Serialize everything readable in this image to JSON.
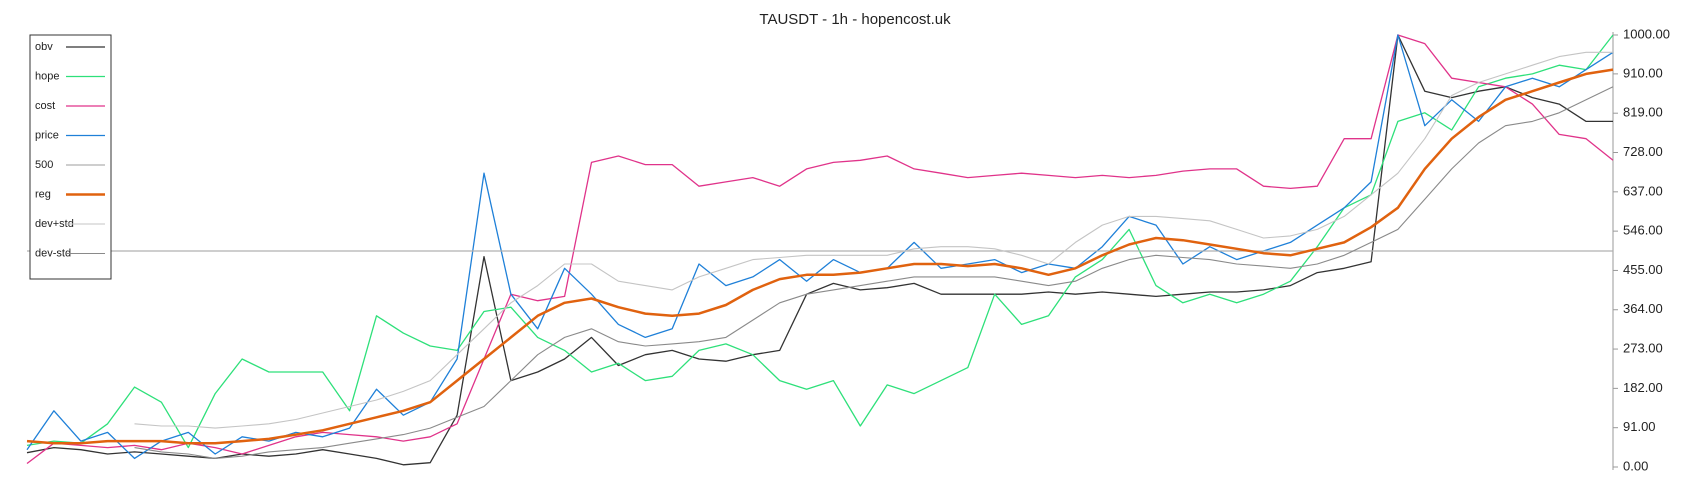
{
  "chart_data": {
    "type": "line",
    "title": "TAUSDT - 1h - hopencost.uk",
    "ylim": [
      0,
      1000
    ],
    "yticks": [
      {
        "value": 0,
        "label": "0.00"
      },
      {
        "value": 91,
        "label": "91.00"
      },
      {
        "value": 182,
        "label": "182.00"
      },
      {
        "value": 273,
        "label": "273.00"
      },
      {
        "value": 364,
        "label": "364.00"
      },
      {
        "value": 455,
        "label": "455.00"
      },
      {
        "value": 546,
        "label": "546.00"
      },
      {
        "value": 637,
        "label": "637.00"
      },
      {
        "value": 728,
        "label": "728.00"
      },
      {
        "value": 819,
        "label": "819.00"
      },
      {
        "value": 910,
        "label": "910.00"
      },
      {
        "value": 1000,
        "label": "1000.00"
      }
    ],
    "legend": "top-left",
    "series": [
      {
        "name": "obv",
        "color": "#333333",
        "width": 1.3,
        "values": [
          33,
          45,
          40,
          30,
          35,
          30,
          25,
          20,
          30,
          25,
          30,
          40,
          30,
          20,
          5,
          10,
          120,
          487,
          200,
          220,
          250,
          300,
          235,
          260,
          270,
          250,
          245,
          260,
          270,
          400,
          425,
          410,
          415,
          425,
          400,
          400,
          400,
          400,
          405,
          400,
          405,
          400,
          395,
          400,
          405,
          405,
          410,
          420,
          450,
          460,
          475,
          1000,
          870,
          855,
          870,
          880,
          855,
          840,
          800,
          800
        ]
      },
      {
        "name": "hope",
        "color": "#2ee07a",
        "width": 1.3,
        "values": [
          50,
          60,
          55,
          100,
          185,
          150,
          45,
          170,
          250,
          220,
          220,
          220,
          130,
          350,
          310,
          280,
          270,
          360,
          370,
          300,
          270,
          220,
          240,
          200,
          210,
          270,
          285,
          260,
          200,
          180,
          200,
          95,
          190,
          170,
          200,
          230,
          400,
          330,
          350,
          440,
          480,
          550,
          420,
          380,
          400,
          380,
          400,
          430,
          510,
          600,
          630,
          800,
          820,
          780,
          880,
          900,
          910,
          930,
          920,
          1000
        ]
      },
      {
        "name": "cost",
        "color": "#e0338a",
        "width": 1.3,
        "values": [
          8,
          55,
          50,
          45,
          50,
          40,
          55,
          45,
          30,
          50,
          70,
          80,
          75,
          70,
          60,
          70,
          100,
          250,
          400,
          385,
          395,
          705,
          720,
          700,
          700,
          650,
          660,
          670,
          650,
          690,
          705,
          710,
          720,
          690,
          680,
          670,
          675,
          680,
          675,
          670,
          675,
          670,
          675,
          685,
          690,
          690,
          650,
          645,
          650,
          760,
          760,
          1000,
          980,
          900,
          890,
          880,
          840,
          770,
          760,
          710
        ]
      },
      {
        "name": "price",
        "color": "#1f80d8",
        "width": 1.3,
        "values": [
          40,
          130,
          60,
          80,
          20,
          60,
          80,
          30,
          70,
          60,
          80,
          70,
          90,
          180,
          120,
          150,
          250,
          680,
          400,
          320,
          460,
          400,
          330,
          300,
          320,
          470,
          420,
          440,
          480,
          430,
          480,
          450,
          460,
          520,
          460,
          470,
          480,
          450,
          470,
          460,
          510,
          580,
          560,
          470,
          510,
          480,
          500,
          520,
          560,
          600,
          660,
          1000,
          790,
          850,
          800,
          880,
          900,
          880,
          920,
          960
        ]
      },
      {
        "name": "500",
        "color": "#b0b0b0",
        "width": 1.3,
        "values": [
          500,
          500,
          500,
          500,
          500,
          500,
          500,
          500,
          500,
          500,
          500,
          500,
          500,
          500,
          500,
          500,
          500,
          500,
          500,
          500,
          500,
          500,
          500,
          500,
          500,
          500,
          500,
          500,
          500,
          500,
          500,
          500,
          500,
          500,
          500,
          500,
          500,
          500,
          500,
          500,
          500,
          500,
          500,
          500,
          500,
          500,
          500,
          500,
          500,
          500,
          500,
          500,
          500,
          500,
          500,
          500,
          500,
          500,
          500,
          500
        ]
      },
      {
        "name": "reg",
        "color": "#e0620f",
        "width": 2.5,
        "values": [
          60,
          55,
          55,
          60,
          60,
          60,
          55,
          55,
          60,
          65,
          75,
          85,
          100,
          115,
          130,
          150,
          200,
          250,
          300,
          350,
          380,
          390,
          370,
          355,
          350,
          355,
          375,
          410,
          435,
          445,
          445,
          450,
          460,
          470,
          470,
          465,
          470,
          460,
          445,
          460,
          490,
          515,
          530,
          525,
          515,
          505,
          495,
          490,
          505,
          520,
          555,
          600,
          690,
          760,
          810,
          850,
          870,
          890,
          910,
          920
        ]
      },
      {
        "name": "dev+std",
        "color": "#c4c4c4",
        "width": 1.1,
        "values": [
          null,
          null,
          null,
          null,
          100,
          95,
          95,
          90,
          95,
          100,
          110,
          125,
          140,
          155,
          175,
          200,
          260,
          320,
          380,
          420,
          470,
          470,
          430,
          420,
          410,
          440,
          460,
          480,
          485,
          490,
          490,
          490,
          490,
          505,
          510,
          510,
          505,
          490,
          470,
          520,
          560,
          580,
          580,
          575,
          570,
          550,
          530,
          535,
          550,
          580,
          630,
          680,
          760,
          860,
          890,
          910,
          930,
          950,
          960,
          960
        ]
      },
      {
        "name": "dev-std",
        "color": "#8a8a8a",
        "width": 1.1,
        "values": [
          null,
          null,
          null,
          null,
          45,
          35,
          30,
          20,
          25,
          35,
          40,
          45,
          55,
          65,
          75,
          90,
          115,
          140,
          200,
          260,
          300,
          320,
          290,
          280,
          285,
          290,
          300,
          340,
          380,
          400,
          410,
          420,
          430,
          440,
          440,
          440,
          440,
          430,
          420,
          430,
          460,
          480,
          490,
          485,
          480,
          470,
          465,
          460,
          470,
          490,
          520,
          550,
          620,
          690,
          750,
          790,
          800,
          820,
          850,
          880
        ]
      }
    ]
  }
}
